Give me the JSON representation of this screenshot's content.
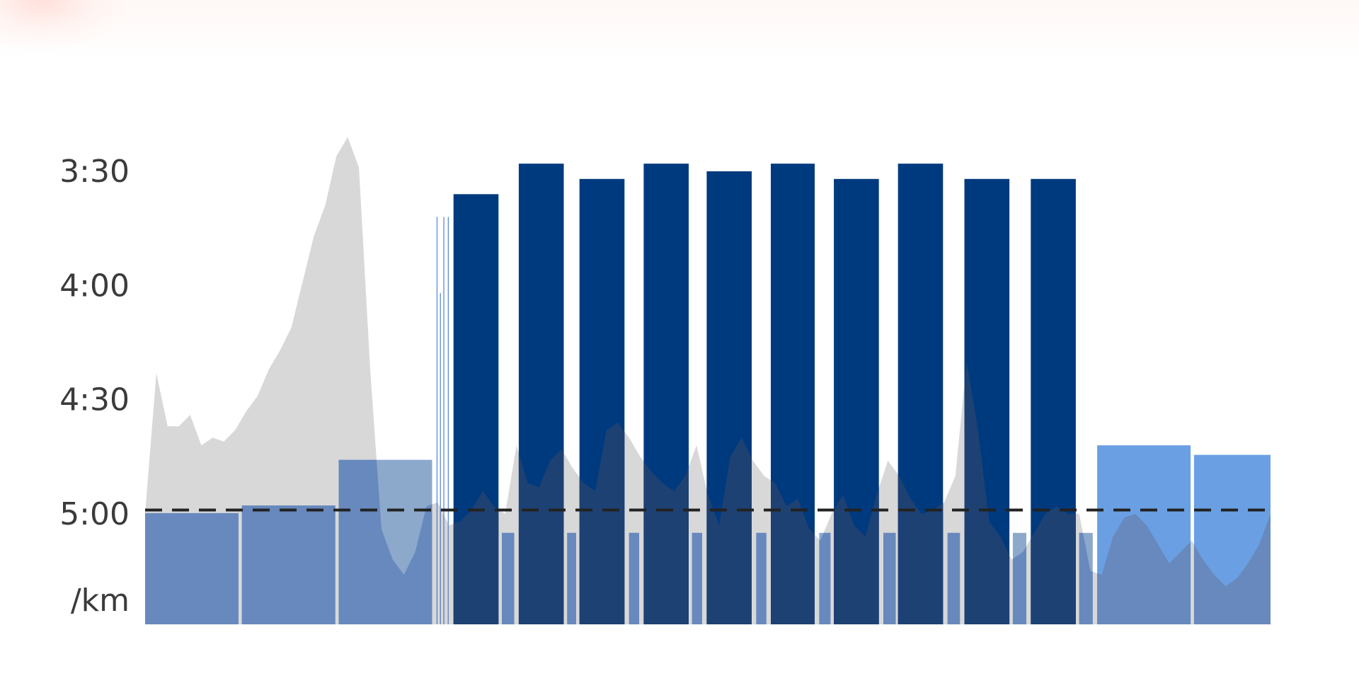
{
  "chart_data": {
    "type": "bar",
    "title": "",
    "unit_label": "/km",
    "y_axis": {
      "reversed": true,
      "range_seconds": [
        190,
        317
      ],
      "ticks": [
        {
          "label": "3:30",
          "seconds": 210
        },
        {
          "label": "4:00",
          "seconds": 240
        },
        {
          "label": "4:30",
          "seconds": 270
        },
        {
          "label": "5:00",
          "seconds": 300
        }
      ]
    },
    "x_range": [
      0,
      100
    ],
    "target_pace": {
      "seconds": 299,
      "style": "dashed",
      "color": "#222222"
    },
    "laps": [
      {
        "type": "warmup",
        "start": 0.0,
        "end": 8.3,
        "pace_seconds": 299.8
      },
      {
        "type": "warmup",
        "start": 8.6,
        "end": 16.9,
        "pace_seconds": 297.8
      },
      {
        "type": "warmup",
        "start": 17.2,
        "end": 25.5,
        "pace_seconds": 285.8
      },
      {
        "type": "interval",
        "start": 25.9,
        "end": 25.98,
        "pace_seconds": 222.0
      },
      {
        "type": "interval",
        "start": 26.2,
        "end": 26.28,
        "pace_seconds": 242.0
      },
      {
        "type": "interval",
        "start": 26.5,
        "end": 26.58,
        "pace_seconds": 222.0
      },
      {
        "type": "interval",
        "start": 26.9,
        "end": 26.98,
        "pace_seconds": 222.0
      },
      {
        "type": "work",
        "start": 27.4,
        "end": 31.4,
        "pace_seconds": 216.0
      },
      {
        "type": "recovery",
        "start": 31.7,
        "end": 32.8,
        "pace_seconds": 305.0
      },
      {
        "type": "work",
        "start": 33.2,
        "end": 37.2,
        "pace_seconds": 208.0
      },
      {
        "type": "recovery",
        "start": 37.5,
        "end": 38.3,
        "pace_seconds": 305.0
      },
      {
        "type": "work",
        "start": 38.6,
        "end": 42.6,
        "pace_seconds": 212.0
      },
      {
        "type": "recovery",
        "start": 43.0,
        "end": 43.9,
        "pace_seconds": 305.0
      },
      {
        "type": "work",
        "start": 44.3,
        "end": 48.3,
        "pace_seconds": 208.0
      },
      {
        "type": "recovery",
        "start": 48.6,
        "end": 49.5,
        "pace_seconds": 305.0
      },
      {
        "type": "work",
        "start": 49.9,
        "end": 53.9,
        "pace_seconds": 210.0
      },
      {
        "type": "recovery",
        "start": 54.3,
        "end": 55.2,
        "pace_seconds": 305.0
      },
      {
        "type": "work",
        "start": 55.6,
        "end": 59.5,
        "pace_seconds": 208.0
      },
      {
        "type": "recovery",
        "start": 59.9,
        "end": 60.9,
        "pace_seconds": 305.0
      },
      {
        "type": "work",
        "start": 61.2,
        "end": 65.2,
        "pace_seconds": 212.0
      },
      {
        "type": "recovery",
        "start": 65.6,
        "end": 66.7,
        "pace_seconds": 305.0
      },
      {
        "type": "work",
        "start": 66.9,
        "end": 70.9,
        "pace_seconds": 208.0
      },
      {
        "type": "recovery",
        "start": 71.3,
        "end": 72.4,
        "pace_seconds": 305.0
      },
      {
        "type": "work",
        "start": 72.8,
        "end": 76.8,
        "pace_seconds": 212.0
      },
      {
        "type": "recovery",
        "start": 77.1,
        "end": 78.3,
        "pace_seconds": 305.0
      },
      {
        "type": "work",
        "start": 78.7,
        "end": 82.7,
        "pace_seconds": 212.0
      },
      {
        "type": "recovery",
        "start": 83.0,
        "end": 84.2,
        "pace_seconds": 305.0
      },
      {
        "type": "cooldown",
        "start": 84.6,
        "end": 92.9,
        "pace_seconds": 282.0
      },
      {
        "type": "cooldown",
        "start": 93.2,
        "end": 100.0,
        "pace_seconds": 284.5
      }
    ],
    "profile": {
      "x": [
        0.0,
        1.0,
        2.0,
        3.0,
        4.0,
        5.0,
        6.0,
        7.0,
        8.0,
        9.0,
        10.0,
        11.0,
        12.0,
        13.0,
        14.0,
        15.0,
        16.0,
        17.0,
        18.0,
        19.0,
        20.0,
        21.0,
        22.0,
        23.0,
        24.0,
        25.0,
        26.0,
        27.0,
        28.0,
        29.0,
        30.0,
        31.0,
        32.0,
        33.0,
        34.0,
        35.0,
        36.0,
        37.0,
        38.0,
        39.0,
        40.0,
        41.0,
        42.0,
        43.0,
        44.0,
        45.0,
        46.0,
        47.0,
        48.0,
        49.0,
        50.0,
        51.0,
        52.0,
        53.0,
        54.0,
        55.0,
        56.0,
        57.0,
        58.0,
        59.0,
        60.0,
        61.0,
        62.0,
        63.0,
        64.0,
        65.0,
        66.0,
        67.0,
        68.0,
        69.0,
        70.0,
        71.0,
        72.0,
        73.0,
        74.0,
        75.0,
        76.0,
        77.0,
        78.0,
        79.0,
        80.0,
        81.0,
        82.0,
        83.0,
        84.0,
        85.0,
        86.0,
        87.0,
        88.0,
        89.0,
        90.0,
        91.0,
        92.0,
        93.0,
        94.0,
        95.0,
        96.0,
        97.0,
        98.0,
        99.0,
        100.0
      ],
      "y": [
        300,
        263,
        277,
        277,
        274,
        282,
        280,
        281,
        278,
        273,
        269,
        262,
        257,
        251,
        239,
        227,
        219,
        206,
        201,
        209,
        262,
        304,
        312,
        316,
        310,
        298,
        297,
        303,
        302,
        299,
        294,
        298,
        300,
        282,
        292,
        293,
        286,
        283,
        288,
        292,
        294,
        278,
        276,
        280,
        285,
        289,
        292,
        294,
        290,
        282,
        295,
        303,
        285,
        280,
        286,
        290,
        292,
        298,
        296,
        304,
        307,
        300,
        295,
        303,
        306,
        295,
        286,
        290,
        296,
        300,
        299,
        297,
        290,
        260,
        278,
        302,
        306,
        312,
        310,
        305,
        300,
        298,
        300,
        300,
        315,
        316,
        306,
        301,
        300,
        303,
        308,
        313,
        310,
        307,
        312,
        316,
        319,
        317,
        313,
        308,
        300
      ]
    },
    "colors": {
      "work": "#003a7e",
      "warmup": "#8ca9cc",
      "recovery": "#8ca9cc",
      "interval": "#5b8bd6",
      "cooldown": "#6aa0e3",
      "lap_highlight": "#6aa0e3",
      "profile": "#d8d8d8",
      "profile_over_dark": "#1e4173",
      "profile_over_light": "#6789bd",
      "target": "#222222",
      "tick_text": "#3b3b3b"
    }
  }
}
